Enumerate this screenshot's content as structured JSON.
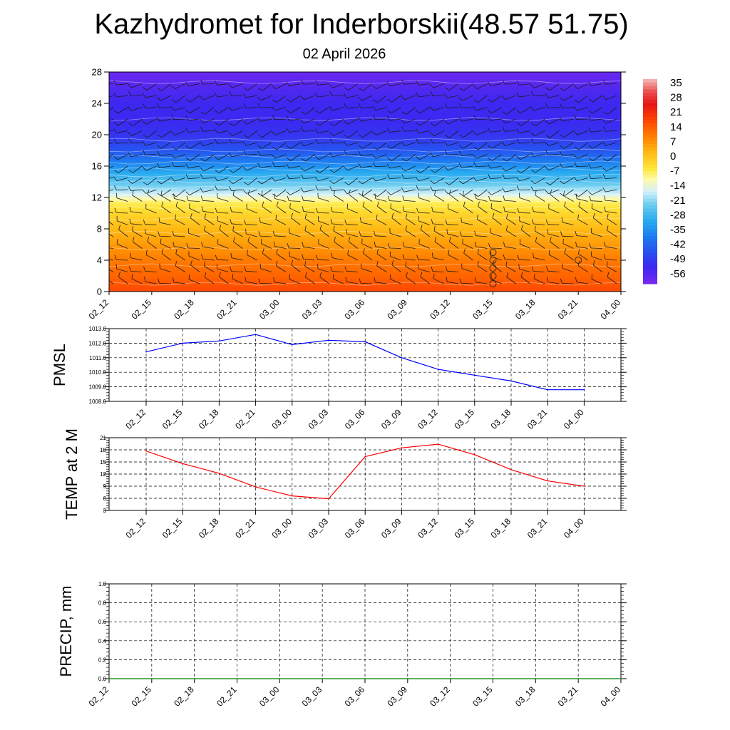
{
  "title": "Kazhydromet for Inderborskii(48.57 51.75)",
  "subtitle": "02 April 2026",
  "time_labels": [
    "02_12",
    "02_15",
    "02_18",
    "02_21",
    "03_00",
    "03_03",
    "03_06",
    "03_09",
    "03_12",
    "03_15",
    "03_18",
    "03_21",
    "04_00"
  ],
  "colors": {
    "pmsl_line": "#0000ff",
    "temp_line": "#ff0000",
    "precip_line": "#008000",
    "grid": "#000000"
  },
  "chart_data": [
    {
      "type": "heatmap",
      "name": "temperature-height-section",
      "x_labels": [
        "02_12",
        "02_15",
        "02_18",
        "02_21",
        "03_00",
        "03_03",
        "03_06",
        "03_09",
        "03_12",
        "03_15",
        "03_18",
        "03_21",
        "04_00"
      ],
      "y_ticks": [
        0,
        4,
        8,
        12,
        16,
        20,
        24,
        28
      ],
      "ylim": [
        0,
        28
      ],
      "colorbar_labels": [
        "35",
        "28",
        "21",
        "14",
        "7",
        "0",
        "-7",
        "-14",
        "-21",
        "-28",
        "-35",
        "-42",
        "-49",
        "-56"
      ],
      "colorbar_range": [
        -60,
        38
      ],
      "level_temperatures": [
        {
          "level": 0,
          "temp": 18
        },
        {
          "level": 2,
          "temp": 14
        },
        {
          "level": 4,
          "temp": 11
        },
        {
          "level": 6,
          "temp": 7
        },
        {
          "level": 8,
          "temp": 3
        },
        {
          "level": 10,
          "temp": -2
        },
        {
          "level": 11.5,
          "temp": -7
        },
        {
          "level": 12.5,
          "temp": -16
        },
        {
          "level": 14,
          "temp": -24
        },
        {
          "level": 16,
          "temp": -34
        },
        {
          "level": 18,
          "temp": -44
        },
        {
          "level": 20,
          "temp": -50
        },
        {
          "level": 22,
          "temp": -52
        },
        {
          "level": 24,
          "temp": -52
        },
        {
          "level": 26,
          "temp": -55
        },
        {
          "level": 28,
          "temp": -58
        }
      ],
      "calm_markers": [
        {
          "time": "03_15",
          "levels": [
            1,
            2,
            3,
            4,
            5
          ]
        },
        {
          "time": "03_21",
          "levels": [
            4
          ]
        }
      ]
    },
    {
      "type": "line",
      "name": "PMSL",
      "ylabel": "PMSL",
      "categories": [
        "02_12",
        "02_15",
        "02_18",
        "02_21",
        "03_00",
        "03_03",
        "03_06",
        "03_09",
        "03_12",
        "03_15",
        "03_18",
        "03_21",
        "04_00"
      ],
      "values": [
        1011.4,
        1012.0,
        1012.15,
        1012.6,
        1011.9,
        1012.2,
        1012.1,
        1011.0,
        1010.2,
        1009.8,
        1009.4,
        1008.8,
        1008.8
      ],
      "ylim": [
        1008.0,
        1013.0
      ],
      "y_ticks": [
        "1008.0",
        "1009.0",
        "1010.0",
        "1011.0",
        "1012.0",
        "1013.0"
      ]
    },
    {
      "type": "line",
      "name": "TEMP at 2 M",
      "ylabel": "TEMP at 2 M",
      "categories": [
        "02_12",
        "02_15",
        "02_18",
        "02_21",
        "03_00",
        "03_03",
        "03_06",
        "03_09",
        "03_12",
        "03_15",
        "03_18",
        "03_21",
        "04_00"
      ],
      "values": [
        17.7,
        14.6,
        12.2,
        8.8,
        6.6,
        5.9,
        16.3,
        18.5,
        19.4,
        16.8,
        13.1,
        10.3,
        9.0
      ],
      "ylim": [
        3,
        21
      ],
      "y_ticks": [
        "3",
        "6",
        "9",
        "12",
        "15",
        "18",
        "21"
      ]
    },
    {
      "type": "line",
      "name": "PRECIP, mm",
      "ylabel": "PRECIP, mm",
      "categories": [
        "02_12",
        "02_15",
        "02_18",
        "02_21",
        "03_00",
        "03_03",
        "03_06",
        "03_09",
        "03_12",
        "03_15",
        "03_18",
        "03_21",
        "04_00"
      ],
      "values": [
        0,
        0,
        0,
        0,
        0,
        0,
        0,
        0,
        0,
        0,
        0,
        0,
        0
      ],
      "ylim": [
        0.0,
        1.0
      ],
      "y_ticks": [
        "0.0",
        "0.2",
        "0.4",
        "0.6",
        "0.8",
        "1.0"
      ]
    }
  ]
}
